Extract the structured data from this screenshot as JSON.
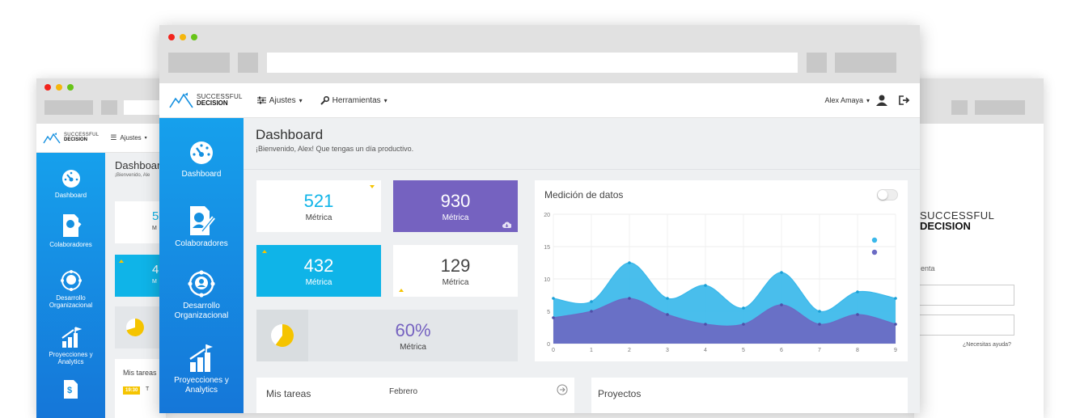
{
  "main": {
    "nav": {
      "ajustes": "Ajustes",
      "herramientas": "Herramientas",
      "user": "Alex Amaya",
      "caret": "▾"
    },
    "logo": {
      "line1": "SUCCESSFUL",
      "line2": "DECISION"
    },
    "sidebar": [
      {
        "label": "Dashboard",
        "icon": "gauge-icon"
      },
      {
        "label": "Colaboradores",
        "icon": "collaborator-doc-icon"
      },
      {
        "label": "Desarrollo Organizacional",
        "icon": "org-network-icon"
      },
      {
        "label": "Proyecciones y Analytics",
        "icon": "growth-chart-icon"
      }
    ],
    "page": {
      "title": "Dashboard",
      "subtitle": "¡Bienvenido, Alex! Que tengas un día productivo."
    },
    "metrics": [
      {
        "value": "521",
        "label": "Métrica"
      },
      {
        "value": "930",
        "label": "Métrica"
      },
      {
        "value": "432",
        "label": "Métrica"
      },
      {
        "value": "129",
        "label": "Métrica"
      }
    ],
    "percent": {
      "value": "60%",
      "label": "Métrica",
      "fraction": 0.6
    },
    "chart_card_title": "Medición de datos",
    "tasks": {
      "title": "Mis tareas",
      "month": "Febrero"
    },
    "projects": {
      "title": "Proyectos"
    }
  },
  "left_window": {
    "nav": {
      "ajustes": "Ajustes"
    },
    "page": {
      "title": "Dashboard",
      "subtitle": "¡Bienvenido, Ale"
    },
    "sidebar": [
      {
        "label": "Dashboard"
      },
      {
        "label": "Colaboradores"
      },
      {
        "label": "Desarrollo Organizacional"
      },
      {
        "label": "Proyecciones y Analytics"
      }
    ],
    "metric_partial_1": "5",
    "metric_partial_1_label": "M",
    "metric_partial_2": "4",
    "metric_partial_2_label": "M",
    "tasks_partial": "Mis tareas",
    "time_badge": "19:30",
    "time_badge_text": "T"
  },
  "right_window": {
    "logo_line1": "SUCCESSFUL",
    "logo_line2": "DECISION",
    "field_label_partial": "enta",
    "help_link": "¿Necesitas ayuda?"
  },
  "chart_data": {
    "type": "area",
    "title": "",
    "x": [
      0,
      1,
      2,
      3,
      4,
      5,
      6,
      7,
      8,
      9
    ],
    "xlim": [
      0,
      9
    ],
    "ylim": [
      0,
      20
    ],
    "yticks": [
      0,
      5,
      10,
      15,
      20
    ],
    "series": [
      {
        "name": "",
        "color": "#3ab8ea",
        "values": [
          7,
          6.5,
          12.5,
          7,
          9,
          5.5,
          11,
          5,
          8,
          7
        ]
      },
      {
        "name": "",
        "color": "#6b6bc4",
        "values": [
          4,
          5,
          7,
          4.5,
          3,
          3,
          6,
          3,
          4.5,
          3
        ]
      }
    ],
    "grid": true,
    "legend": "top-right"
  },
  "colors": {
    "accent": "#0fb4e8",
    "purple": "#7562c0",
    "sidebar": "#1590e0",
    "yellow": "#f5c400"
  }
}
